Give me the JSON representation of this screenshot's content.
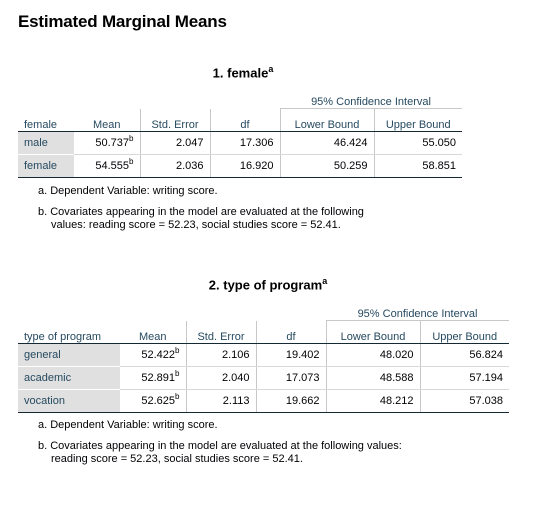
{
  "heading": "Estimated Marginal Means",
  "tables": [
    {
      "title": "1. female",
      "title_sup": "a",
      "ci_header": "95% Confidence Interval",
      "columns": [
        "female",
        "Mean",
        "Std. Error",
        "df",
        "Lower Bound",
        "Upper Bound"
      ],
      "rows": [
        {
          "label": "male",
          "mean": "50.737",
          "mean_sup": "b",
          "se": "2.047",
          "df": "17.306",
          "lower": "46.424",
          "upper": "55.050"
        },
        {
          "label": "female",
          "mean": "54.555",
          "mean_sup": "b",
          "se": "2.036",
          "df": "16.920",
          "lower": "50.259",
          "upper": "58.851"
        }
      ],
      "footnote_a": "a. Dependent Variable: writing score.",
      "footnote_b_line1": "b. Covariates appearing in the model are evaluated at the following",
      "footnote_b_line2": "values: reading score = 52.23, social studies score = 52.41."
    },
    {
      "title": "2. type of program",
      "title_sup": "a",
      "ci_header": "95% Confidence Interval",
      "columns": [
        "type of program",
        "Mean",
        "Std. Error",
        "df",
        "Lower Bound",
        "Upper Bound"
      ],
      "rows": [
        {
          "label": "general",
          "mean": "52.422",
          "mean_sup": "b",
          "se": "2.106",
          "df": "19.402",
          "lower": "48.020",
          "upper": "56.824"
        },
        {
          "label": "academic",
          "mean": "52.891",
          "mean_sup": "b",
          "se": "2.040",
          "df": "17.073",
          "lower": "48.588",
          "upper": "57.194"
        },
        {
          "label": "vocation",
          "mean": "52.625",
          "mean_sup": "b",
          "se": "2.113",
          "df": "19.662",
          "lower": "48.212",
          "upper": "57.038"
        }
      ],
      "footnote_a": "a. Dependent Variable: writing score.",
      "footnote_b_line1": "b. Covariates appearing in the model are evaluated at the following values:",
      "footnote_b_line2": "reading score = 52.23, social studies score = 52.41."
    }
  ]
}
